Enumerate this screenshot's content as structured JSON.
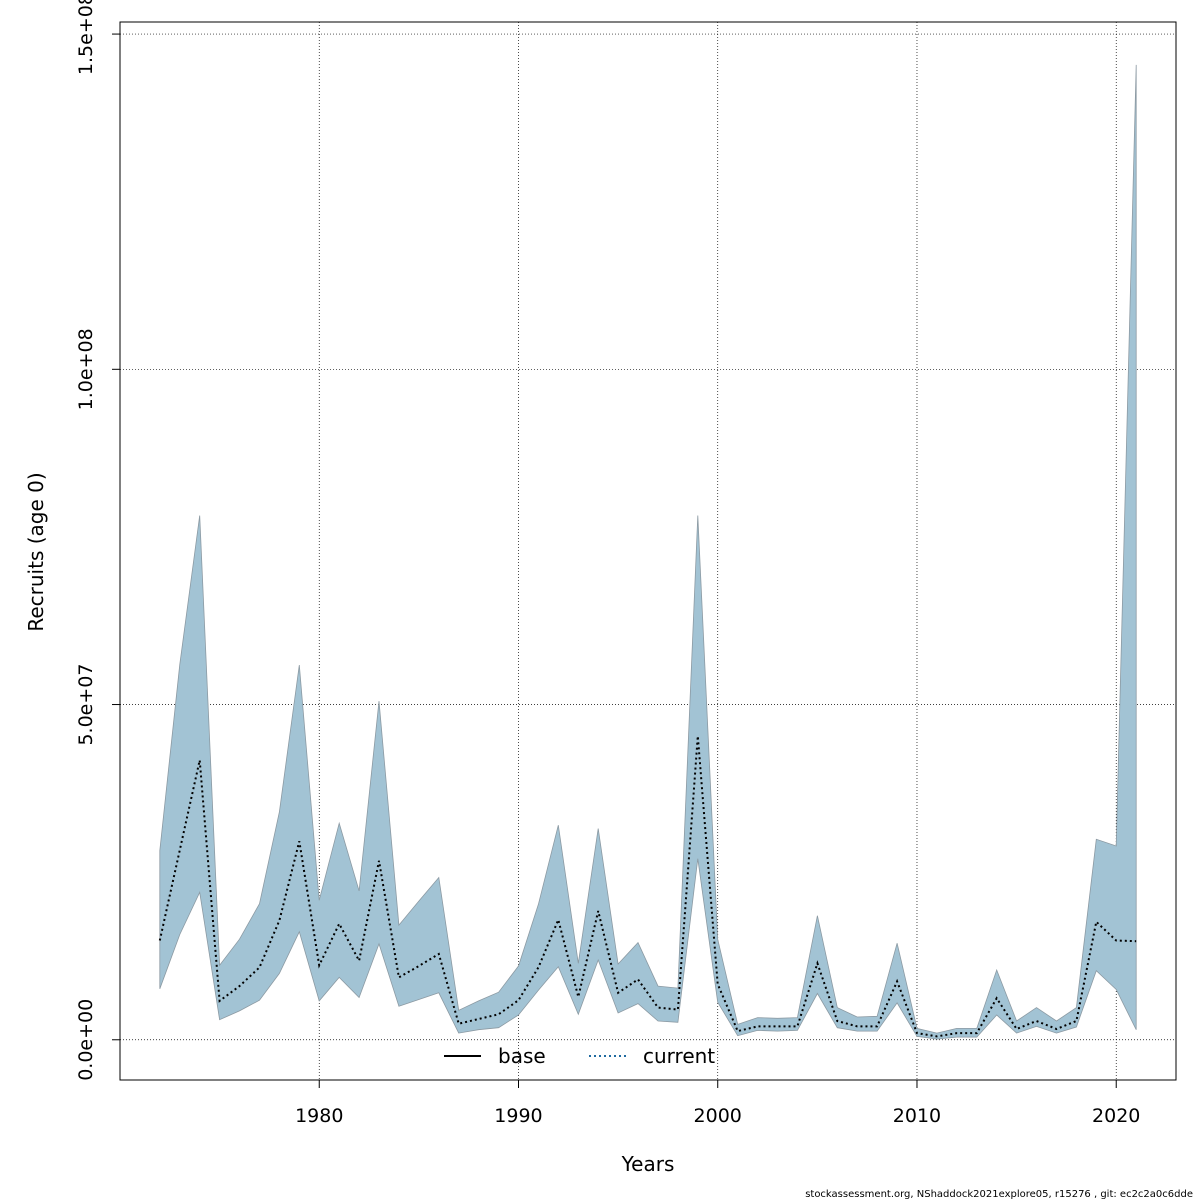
{
  "chart_data": {
    "type": "area",
    "xlabel": "Years",
    "ylabel": "Recruits (age 0)",
    "xlim": [
      1970,
      2023
    ],
    "ylim": [
      -6000000,
      151800000
    ],
    "xticks": [
      1980,
      1990,
      2000,
      2010,
      2020
    ],
    "yticks": [
      0,
      50000000,
      100000000,
      150000000
    ],
    "ytick_labels": [
      "0.0e+00",
      "5.0e+07",
      "1.0e+08",
      "1.5e+08"
    ],
    "grid": true,
    "legend": {
      "position": "bottom-center",
      "entries": [
        {
          "name": "base",
          "style": "solid",
          "color": "#000000"
        },
        {
          "name": "current",
          "style": "dotted",
          "color": "#1f6aa0"
        }
      ]
    },
    "band_color": "#a2c3d4",
    "band_edge_color": "#8c9aa3",
    "years": [
      1972,
      1973,
      1974,
      1975,
      1976,
      1977,
      1978,
      1979,
      1980,
      1981,
      1982,
      1983,
      1984,
      1985,
      1986,
      1987,
      1988,
      1989,
      1990,
      1991,
      1992,
      1993,
      1994,
      1995,
      1996,
      1997,
      1998,
      1999,
      2000,
      2001,
      2002,
      2003,
      2004,
      2005,
      2006,
      2007,
      2008,
      2009,
      2010,
      2011,
      2012,
      2013,
      2014,
      2015,
      2016,
      2017,
      2018,
      2019,
      2020,
      2021
    ],
    "upper": [
      28200000,
      56000000,
      78200000,
      11100000,
      15000000,
      20300000,
      34000000,
      55900000,
      20800000,
      32300000,
      22200000,
      50500000,
      17100000,
      20700000,
      24200000,
      4400000,
      5800000,
      7100000,
      11000000,
      20200000,
      32000000,
      11400000,
      31500000,
      11300000,
      14500000,
      8000000,
      7700000,
      78200000,
      15000000,
      2300000,
      3300000,
      3200000,
      3300000,
      18500000,
      4800000,
      3400000,
      3500000,
      14400000,
      1700000,
      1000000,
      1700000,
      1700000,
      10400000,
      2800000,
      4800000,
      2800000,
      4800000,
      29900000,
      28900000,
      145400000
    ],
    "median": [
      14800000,
      28300000,
      41700000,
      5800000,
      8000000,
      10800000,
      17800000,
      29600000,
      11100000,
      17300000,
      11800000,
      26700000,
      9300000,
      11000000,
      12800000,
      2400000,
      3100000,
      3800000,
      5900000,
      10800000,
      17900000,
      6400000,
      19200000,
      7000000,
      9000000,
      4800000,
      4500000,
      45300000,
      8300000,
      1300000,
      2000000,
      2000000,
      2000000,
      11400000,
      2800000,
      2000000,
      2000000,
      8700000,
      1000000,
      500000,
      1000000,
      1000000,
      6200000,
      1600000,
      2800000,
      1600000,
      2800000,
      17600000,
      14800000,
      14700000
    ],
    "lower": [
      7600000,
      15700000,
      22000000,
      3000000,
      4300000,
      5900000,
      9900000,
      16100000,
      5800000,
      9300000,
      6300000,
      14300000,
      5000000,
      6000000,
      7000000,
      1000000,
      1500000,
      1800000,
      3700000,
      7400000,
      10900000,
      3800000,
      11900000,
      4000000,
      5400000,
      2800000,
      2600000,
      27000000,
      5600000,
      600000,
      1400000,
      1300000,
      1400000,
      6900000,
      1800000,
      1300000,
      1300000,
      5500000,
      500000,
      100000,
      400000,
      400000,
      3700000,
      1000000,
      2000000,
      1000000,
      1900000,
      10300000,
      7500000,
      1500000
    ]
  },
  "footer_text": "stockassessment.org, NShaddock2021explore05, r15276 , git: ec2c2a0c6dde"
}
